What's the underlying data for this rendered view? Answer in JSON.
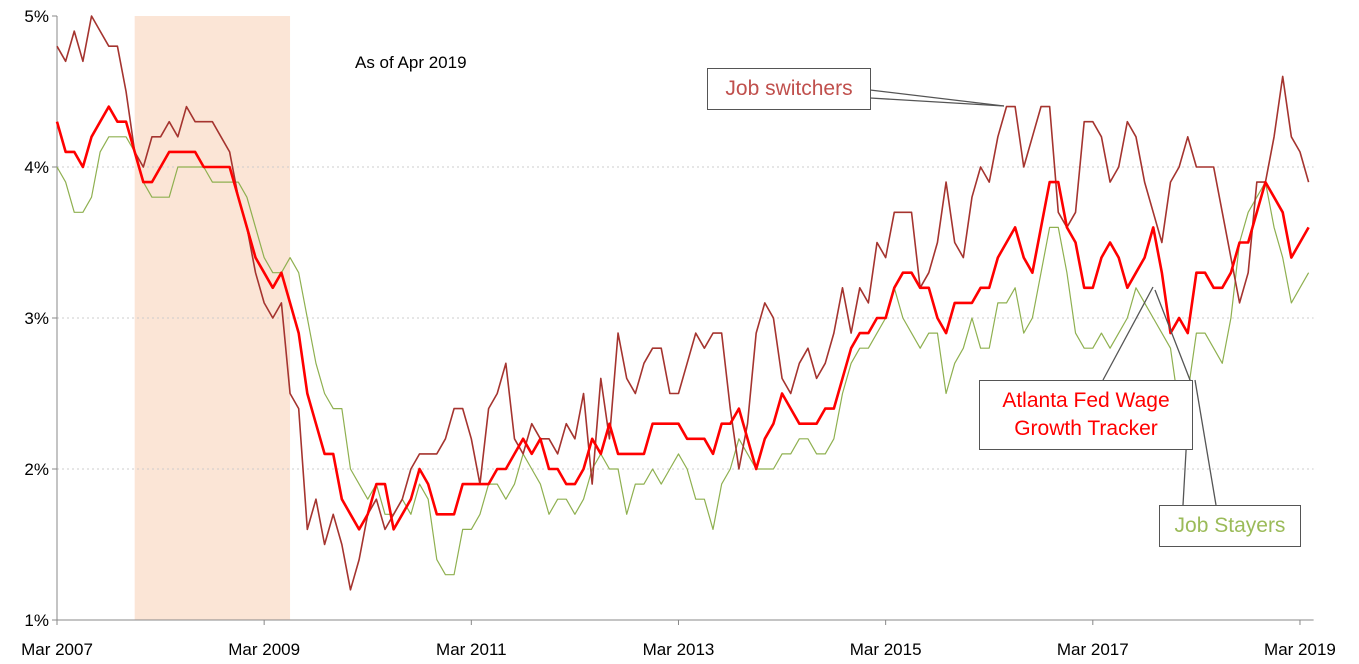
{
  "chart_data": {
    "type": "line",
    "annotation": "As of Apr 2019",
    "x": [
      "2007-03",
      "2007-04",
      "2007-05",
      "2007-06",
      "2007-07",
      "2007-08",
      "2007-09",
      "2007-10",
      "2007-11",
      "2007-12",
      "2008-01",
      "2008-02",
      "2008-03",
      "2008-04",
      "2008-05",
      "2008-06",
      "2008-07",
      "2008-08",
      "2008-09",
      "2008-10",
      "2008-11",
      "2008-12",
      "2009-01",
      "2009-02",
      "2009-03",
      "2009-04",
      "2009-05",
      "2009-06",
      "2009-07",
      "2009-08",
      "2009-09",
      "2009-10",
      "2009-11",
      "2009-12",
      "2010-01",
      "2010-02",
      "2010-03",
      "2010-04",
      "2010-05",
      "2010-06",
      "2010-07",
      "2010-08",
      "2010-09",
      "2010-10",
      "2010-11",
      "2010-12",
      "2011-01",
      "2011-02",
      "2011-03",
      "2011-04",
      "2011-05",
      "2011-06",
      "2011-07",
      "2011-08",
      "2011-09",
      "2011-10",
      "2011-11",
      "2011-12",
      "2012-01",
      "2012-02",
      "2012-03",
      "2012-04",
      "2012-05",
      "2012-06",
      "2012-07",
      "2012-08",
      "2012-09",
      "2012-10",
      "2012-11",
      "2012-12",
      "2013-01",
      "2013-02",
      "2013-03",
      "2013-04",
      "2013-05",
      "2013-06",
      "2013-07",
      "2013-08",
      "2013-09",
      "2013-10",
      "2013-11",
      "2013-12",
      "2014-01",
      "2014-02",
      "2014-03",
      "2014-04",
      "2014-05",
      "2014-06",
      "2014-07",
      "2014-08",
      "2014-09",
      "2014-10",
      "2014-11",
      "2014-12",
      "2015-01",
      "2015-02",
      "2015-03",
      "2015-04",
      "2015-05",
      "2015-06",
      "2015-07",
      "2015-08",
      "2015-09",
      "2015-10",
      "2015-11",
      "2015-12",
      "2016-01",
      "2016-02",
      "2016-03",
      "2016-04",
      "2016-05",
      "2016-06",
      "2016-07",
      "2016-08",
      "2016-09",
      "2016-10",
      "2016-11",
      "2016-12",
      "2017-01",
      "2017-02",
      "2017-03",
      "2017-04",
      "2017-05",
      "2017-06",
      "2017-07",
      "2017-08",
      "2017-09",
      "2017-10",
      "2017-11",
      "2017-12",
      "2018-01",
      "2018-02",
      "2018-03",
      "2018-04",
      "2018-05",
      "2018-06",
      "2018-07",
      "2018-08",
      "2018-09",
      "2018-10",
      "2018-11",
      "2018-12",
      "2019-01",
      "2019-02",
      "2019-03",
      "2019-04"
    ],
    "series": [
      {
        "name": "Job switchers",
        "color": "#a5342f",
        "width": 1.6,
        "values": [
          4.8,
          4.7,
          4.9,
          4.7,
          5.0,
          4.9,
          4.8,
          4.8,
          4.5,
          4.1,
          4.0,
          4.2,
          4.2,
          4.3,
          4.2,
          4.4,
          4.3,
          4.3,
          4.3,
          4.2,
          4.1,
          3.8,
          3.6,
          3.3,
          3.1,
          3.0,
          3.1,
          2.5,
          2.4,
          1.6,
          1.8,
          1.5,
          1.7,
          1.5,
          1.2,
          1.4,
          1.7,
          1.8,
          1.6,
          1.7,
          1.8,
          2.0,
          2.1,
          2.1,
          2.1,
          2.2,
          2.4,
          2.4,
          2.2,
          1.9,
          2.4,
          2.5,
          2.7,
          2.2,
          2.1,
          2.3,
          2.2,
          2.2,
          2.1,
          2.3,
          2.2,
          2.5,
          1.9,
          2.6,
          2.2,
          2.9,
          2.6,
          2.5,
          2.7,
          2.8,
          2.8,
          2.5,
          2.5,
          2.7,
          2.9,
          2.8,
          2.9,
          2.9,
          2.4,
          2.0,
          2.3,
          2.9,
          3.1,
          3.0,
          2.6,
          2.5,
          2.7,
          2.8,
          2.6,
          2.7,
          2.9,
          3.2,
          2.9,
          3.2,
          3.1,
          3.5,
          3.4,
          3.7,
          3.7,
          3.7,
          3.2,
          3.3,
          3.5,
          3.9,
          3.5,
          3.4,
          3.8,
          4.0,
          3.9,
          4.2,
          4.4,
          4.4,
          4.0,
          4.2,
          4.4,
          4.4,
          3.7,
          3.6,
          3.7,
          4.3,
          4.3,
          4.2,
          3.9,
          4.0,
          4.3,
          4.2,
          3.9,
          3.7,
          3.5,
          3.9,
          4.0,
          4.2,
          4.0,
          4.0,
          4.0,
          3.7,
          3.4,
          3.1,
          3.3,
          3.9,
          3.9,
          4.2,
          4.6,
          4.2,
          4.1,
          3.9
        ]
      },
      {
        "name": "Atlanta Fed Wage Growth Tracker",
        "color": "#ff0000",
        "width": 2.6,
        "values": [
          4.3,
          4.1,
          4.1,
          4.0,
          4.2,
          4.3,
          4.4,
          4.3,
          4.3,
          4.1,
          3.9,
          3.9,
          4.0,
          4.1,
          4.1,
          4.1,
          4.1,
          4.0,
          4.0,
          4.0,
          4.0,
          3.8,
          3.6,
          3.4,
          3.3,
          3.2,
          3.3,
          3.1,
          2.9,
          2.5,
          2.3,
          2.1,
          2.1,
          1.8,
          1.7,
          1.6,
          1.7,
          1.9,
          1.9,
          1.6,
          1.7,
          1.8,
          2.0,
          1.9,
          1.7,
          1.7,
          1.7,
          1.9,
          1.9,
          1.9,
          1.9,
          2.0,
          2.0,
          2.1,
          2.2,
          2.1,
          2.2,
          2.0,
          2.0,
          1.9,
          1.9,
          2.0,
          2.2,
          2.1,
          2.3,
          2.1,
          2.1,
          2.1,
          2.1,
          2.3,
          2.3,
          2.3,
          2.3,
          2.2,
          2.2,
          2.2,
          2.1,
          2.3,
          2.3,
          2.4,
          2.2,
          2.0,
          2.2,
          2.3,
          2.5,
          2.4,
          2.3,
          2.3,
          2.3,
          2.4,
          2.4,
          2.6,
          2.8,
          2.9,
          2.9,
          3.0,
          3.0,
          3.2,
          3.3,
          3.3,
          3.2,
          3.2,
          3.0,
          2.9,
          3.1,
          3.1,
          3.1,
          3.2,
          3.2,
          3.4,
          3.5,
          3.6,
          3.4,
          3.3,
          3.6,
          3.9,
          3.9,
          3.6,
          3.5,
          3.2,
          3.2,
          3.4,
          3.5,
          3.4,
          3.2,
          3.3,
          3.4,
          3.6,
          3.3,
          2.9,
          3.0,
          2.9,
          3.3,
          3.3,
          3.2,
          3.2,
          3.3,
          3.5,
          3.5,
          3.7,
          3.9,
          3.8,
          3.7,
          3.4,
          3.5,
          3.6
        ]
      },
      {
        "name": "Job Stayers",
        "color": "#8fb050",
        "width": 1.2,
        "values": [
          4.0,
          3.9,
          3.7,
          3.7,
          3.8,
          4.1,
          4.2,
          4.2,
          4.2,
          4.1,
          3.9,
          3.8,
          3.8,
          3.8,
          4.0,
          4.0,
          4.0,
          4.0,
          3.9,
          3.9,
          3.9,
          3.9,
          3.8,
          3.6,
          3.4,
          3.3,
          3.3,
          3.4,
          3.3,
          3.0,
          2.7,
          2.5,
          2.4,
          2.4,
          2.0,
          1.9,
          1.8,
          1.9,
          1.7,
          1.7,
          1.8,
          1.7,
          1.9,
          1.8,
          1.4,
          1.3,
          1.3,
          1.6,
          1.6,
          1.7,
          1.9,
          1.9,
          1.8,
          1.9,
          2.1,
          2.0,
          1.9,
          1.7,
          1.8,
          1.8,
          1.7,
          1.8,
          2.0,
          2.1,
          2.0,
          2.0,
          1.7,
          1.9,
          1.9,
          2.0,
          1.9,
          2.0,
          2.1,
          2.0,
          1.8,
          1.8,
          1.6,
          1.9,
          2.0,
          2.2,
          2.1,
          2.0,
          2.0,
          2.0,
          2.1,
          2.1,
          2.2,
          2.2,
          2.1,
          2.1,
          2.2,
          2.5,
          2.7,
          2.8,
          2.8,
          2.9,
          3.0,
          3.2,
          3.0,
          2.9,
          2.8,
          2.9,
          2.9,
          2.5,
          2.7,
          2.8,
          3.0,
          2.8,
          2.8,
          3.1,
          3.1,
          3.2,
          2.9,
          3.0,
          3.3,
          3.6,
          3.6,
          3.3,
          2.9,
          2.8,
          2.8,
          2.9,
          2.8,
          2.9,
          3.0,
          3.2,
          3.1,
          3.0,
          2.9,
          2.8,
          2.4,
          2.5,
          2.9,
          2.9,
          2.8,
          2.7,
          3.0,
          3.5,
          3.7,
          3.8,
          3.9,
          3.6,
          3.4,
          3.1,
          3.2,
          3.3
        ]
      }
    ],
    "xlim": [
      "2007-03",
      "2019-04"
    ],
    "xticks": [
      {
        "value": "2007-03",
        "label": "Mar 2007"
      },
      {
        "value": "2009-03",
        "label": "Mar 2009"
      },
      {
        "value": "2011-03",
        "label": "Mar 2011"
      },
      {
        "value": "2013-03",
        "label": "Mar 2013"
      },
      {
        "value": "2015-03",
        "label": "Mar 2015"
      },
      {
        "value": "2017-03",
        "label": "Mar 2017"
      },
      {
        "value": "2019-03",
        "label": "Mar 2019"
      }
    ],
    "ylim": [
      1,
      5
    ],
    "yticks": [
      {
        "value": 1,
        "label": "1%"
      },
      {
        "value": 2,
        "label": "2%"
      },
      {
        "value": 3,
        "label": "3%"
      },
      {
        "value": 4,
        "label": "4%"
      },
      {
        "value": 5,
        "label": "5%"
      }
    ],
    "grid": true,
    "shaded_range": {
      "start": "2007-12",
      "end": "2009-06",
      "color": "#fbe5d6"
    }
  }
}
